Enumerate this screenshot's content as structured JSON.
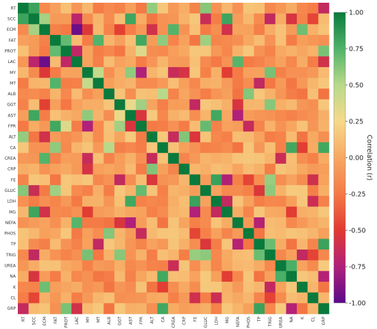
{
  "chart_data": {
    "type": "heatmap",
    "title": "",
    "labels": [
      "RT",
      "SCC",
      "ECM",
      "FAT",
      "PROT",
      "LAC",
      "MY",
      "MT",
      "ALB",
      "GGT",
      "AST",
      "FPR",
      "ALT",
      "CA",
      "CREA",
      "CRP",
      "FE",
      "GLUC",
      "LDH",
      "MG",
      "NEFA",
      "PHOS",
      "TP",
      "TRIG",
      "UREA",
      "NA",
      "K",
      "CL",
      "GRP"
    ],
    "matrix": [],
    "colorbar": {
      "label": "Correlation (r)",
      "vmin": -1.0,
      "vmax": 1.0,
      "ticks": [
        "1.00",
        "0.75",
        "0.50",
        "0.25",
        "0.00",
        "-0.25",
        "-0.50",
        "-0.75",
        "-1.00"
      ],
      "tick_values": [
        1.0,
        0.75,
        0.5,
        0.25,
        0.0,
        -0.25,
        -0.5,
        -0.75,
        -1.0
      ],
      "colormap_stops": [
        {
          "v": -1.0,
          "color": "#5b0a8a"
        },
        {
          "v": -0.75,
          "color": "#b0207a"
        },
        {
          "v": -0.5,
          "color": "#e13a32"
        },
        {
          "v": -0.25,
          "color": "#f57a45"
        },
        {
          "v": 0.0,
          "color": "#f7a861"
        },
        {
          "v": 0.25,
          "color": "#f6d98a"
        },
        {
          "v": 0.5,
          "color": "#b9d98a"
        },
        {
          "v": 0.75,
          "color": "#4fb369"
        },
        {
          "v": 1.0,
          "color": "#0a7a3c"
        }
      ]
    }
  }
}
